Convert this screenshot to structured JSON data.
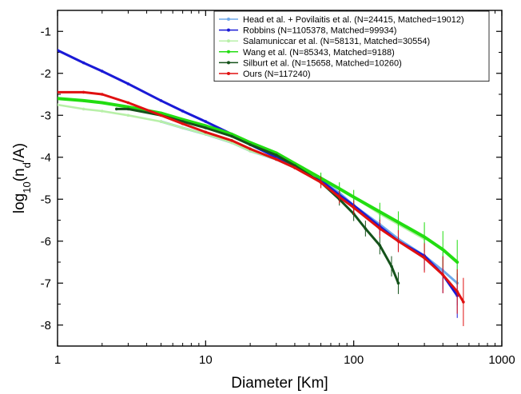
{
  "chart_data": {
    "type": "line",
    "title": "",
    "xlabel": "Diameter [Km]",
    "ylabel_main": "log",
    "ylabel_sub10": "10",
    "ylabel_paren": "(n",
    "ylabel_subd": "d",
    "ylabel_tail": "/A)",
    "x_scale": "log",
    "xlim": [
      1,
      1000
    ],
    "ylim": [
      -8.5,
      -0.5
    ],
    "x_ticks": [
      1,
      10,
      100,
      1000
    ],
    "x_tick_labels": [
      "1",
      "10",
      "100",
      "1000"
    ],
    "y_ticks": [
      -1,
      -2,
      -3,
      -4,
      -5,
      -6,
      -7,
      -8
    ],
    "y_tick_labels": [
      "-1",
      "-2",
      "-3",
      "-4",
      "-5",
      "-6",
      "-7",
      "-8"
    ],
    "grid": false,
    "legend_position": "top-right",
    "series": [
      {
        "name": "Head et al. + Povilaitis et al. (N=24415, Matched=19012)",
        "color": "#6fa8ea",
        "x": [
          5,
          7,
          10,
          15,
          20,
          30,
          40,
          60,
          80,
          100,
          150,
          200,
          300,
          400,
          500
        ],
        "y": [
          -3.15,
          -3.3,
          -3.45,
          -3.65,
          -3.85,
          -4.05,
          -4.25,
          -4.55,
          -4.85,
          -5.15,
          -5.6,
          -5.95,
          -6.35,
          -6.7,
          -7.0
        ]
      },
      {
        "name": "Robbins (N=1105378, Matched=99934)",
        "color": "#1a1ad6",
        "x": [
          1,
          1.5,
          2,
          3,
          5,
          7,
          10,
          15,
          20,
          30,
          40,
          60,
          80,
          100,
          150,
          200,
          300,
          400,
          500
        ],
        "y": [
          -1.45,
          -1.75,
          -1.95,
          -2.25,
          -2.65,
          -2.9,
          -3.15,
          -3.45,
          -3.7,
          -4.0,
          -4.25,
          -4.55,
          -4.9,
          -5.15,
          -5.65,
          -6.0,
          -6.35,
          -6.8,
          -7.3
        ]
      },
      {
        "name": "Salamuniccar et al. (N=58131, Matched=30554)",
        "color": "#b8f0a8",
        "x": [
          1,
          1.5,
          2,
          3,
          5,
          7,
          10,
          15,
          20,
          30,
          40,
          60,
          80,
          100,
          150,
          200,
          300
        ],
        "y": [
          -2.75,
          -2.85,
          -2.9,
          -3.0,
          -3.15,
          -3.3,
          -3.45,
          -3.65,
          -3.85,
          -4.05,
          -4.25,
          -4.5,
          -4.75,
          -4.95,
          -5.35,
          -5.6,
          -5.95
        ]
      },
      {
        "name": "Wang et al. (N=85343, Matched=9188)",
        "color": "#22dd11",
        "x": [
          1,
          1.5,
          2,
          3,
          5,
          7,
          10,
          15,
          20,
          30,
          40,
          60,
          80,
          100,
          150,
          200,
          300,
          400,
          500
        ],
        "y": [
          -2.6,
          -2.65,
          -2.7,
          -2.8,
          -2.95,
          -3.1,
          -3.25,
          -3.45,
          -3.65,
          -3.9,
          -4.15,
          -4.5,
          -4.75,
          -4.95,
          -5.3,
          -5.55,
          -5.9,
          -6.2,
          -6.5
        ]
      },
      {
        "name": "Silburt et al. (N=15658, Matched=10260)",
        "color": "#14521a",
        "x": [
          2.5,
          3,
          5,
          7,
          10,
          15,
          20,
          30,
          40,
          60,
          80,
          100,
          120,
          150,
          180,
          200
        ],
        "y": [
          -2.85,
          -2.85,
          -3.0,
          -3.15,
          -3.3,
          -3.5,
          -3.7,
          -3.95,
          -4.2,
          -4.6,
          -5.0,
          -5.35,
          -5.7,
          -6.1,
          -6.6,
          -7.0
        ]
      },
      {
        "name": "Ours (N=117240)",
        "color": "#e01010",
        "x": [
          1,
          1.5,
          2,
          3,
          5,
          7,
          10,
          15,
          20,
          30,
          40,
          60,
          80,
          100,
          150,
          200,
          300,
          400,
          500,
          550
        ],
        "y": [
          -2.45,
          -2.45,
          -2.5,
          -2.7,
          -3.0,
          -3.2,
          -3.4,
          -3.6,
          -3.8,
          -4.05,
          -4.25,
          -4.6,
          -4.95,
          -5.2,
          -5.7,
          -6.0,
          -6.4,
          -6.8,
          -7.2,
          -7.45
        ]
      }
    ]
  }
}
